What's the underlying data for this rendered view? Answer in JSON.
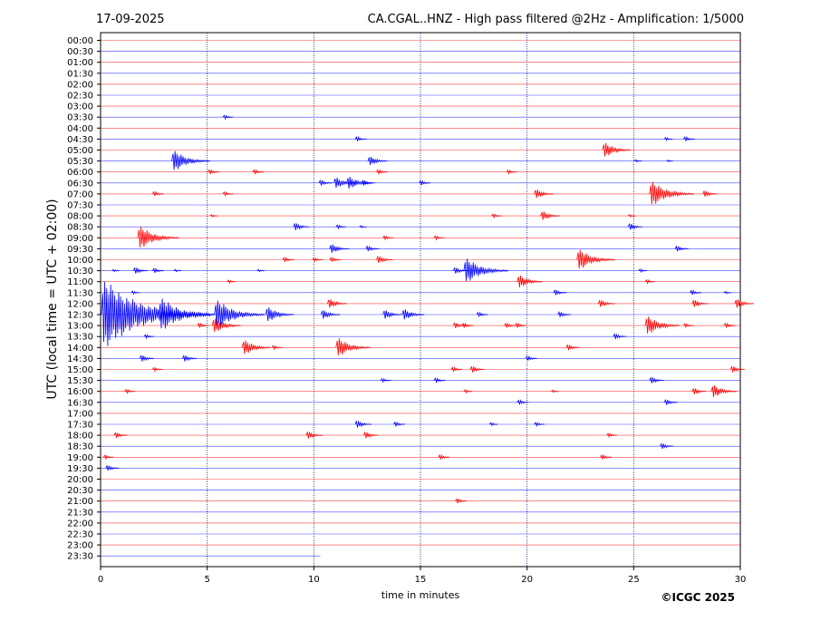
{
  "header": {
    "date": "17-09-2025",
    "title": "CA.CGAL..HNZ - High pass filtered @2Hz - Amplification: 1/5000"
  },
  "copyright": "©ICGC 2025",
  "chart_data": {
    "type": "seismogram",
    "xlabel": "time in minutes",
    "ylabel": "UTC (local time = UTC + 02:00)",
    "xlim": [
      0,
      30
    ],
    "x_ticks": [
      0,
      5,
      10,
      15,
      20,
      25,
      30
    ],
    "x_gridlines": [
      5,
      10,
      15,
      20,
      25
    ],
    "row_labels": [
      "00:00",
      "00:30",
      "01:00",
      "01:30",
      "02:00",
      "02:30",
      "03:00",
      "03:30",
      "04:00",
      "04:30",
      "05:00",
      "05:30",
      "06:00",
      "06:30",
      "07:00",
      "07:30",
      "08:00",
      "08:30",
      "09:00",
      "09:30",
      "10:00",
      "10:30",
      "11:00",
      "11:30",
      "12:00",
      "12:30",
      "13:00",
      "13:30",
      "14:00",
      "14:30",
      "15:00",
      "15:30",
      "16:00",
      "16:30",
      "17:00",
      "17:30",
      "18:00",
      "18:30",
      "19:00",
      "19:30",
      "20:00",
      "20:30",
      "21:00",
      "21:30",
      "22:00",
      "22:30",
      "23:00",
      "23:30"
    ],
    "trace_colors": [
      "#ff0000",
      "#0000ff"
    ],
    "last_trace_end_minute": 10.3,
    "events": [
      {
        "row": "03:30",
        "t": 5.8,
        "amp": 0.3
      },
      {
        "row": "04:30",
        "t": 12.0,
        "amp": 0.35
      },
      {
        "row": "04:30",
        "t": 26.5,
        "amp": 0.25
      },
      {
        "row": "04:30",
        "t": 27.4,
        "amp": 0.35
      },
      {
        "row": "05:00",
        "t": 23.6,
        "amp": 0.9
      },
      {
        "row": "05:30",
        "t": 3.4,
        "amp": 1.2
      },
      {
        "row": "05:30",
        "t": 12.6,
        "amp": 0.6
      },
      {
        "row": "05:30",
        "t": 25.1,
        "amp": 0.2
      },
      {
        "row": "05:30",
        "t": 26.6,
        "amp": 0.15
      },
      {
        "row": "06:00",
        "t": 5.1,
        "amp": 0.35
      },
      {
        "row": "06:00",
        "t": 7.2,
        "amp": 0.35
      },
      {
        "row": "06:00",
        "t": 13.0,
        "amp": 0.35
      },
      {
        "row": "06:00",
        "t": 19.1,
        "amp": 0.3
      },
      {
        "row": "06:30",
        "t": 10.3,
        "amp": 0.4
      },
      {
        "row": "06:30",
        "t": 11.0,
        "amp": 0.7
      },
      {
        "row": "06:30",
        "t": 11.6,
        "amp": 0.8
      },
      {
        "row": "06:30",
        "t": 12.3,
        "amp": 0.4
      },
      {
        "row": "06:30",
        "t": 15.0,
        "amp": 0.35
      },
      {
        "row": "07:00",
        "t": 2.5,
        "amp": 0.35
      },
      {
        "row": "07:00",
        "t": 5.8,
        "amp": 0.3
      },
      {
        "row": "07:00",
        "t": 20.4,
        "amp": 0.6
      },
      {
        "row": "07:00",
        "t": 25.8,
        "amp": 1.4
      },
      {
        "row": "07:00",
        "t": 28.3,
        "amp": 0.45
      },
      {
        "row": "08:00",
        "t": 5.2,
        "amp": 0.2
      },
      {
        "row": "08:00",
        "t": 18.4,
        "amp": 0.3
      },
      {
        "row": "08:00",
        "t": 20.7,
        "amp": 0.6
      },
      {
        "row": "08:00",
        "t": 24.8,
        "amp": 0.2
      },
      {
        "row": "08:30",
        "t": 9.1,
        "amp": 0.5
      },
      {
        "row": "08:30",
        "t": 11.1,
        "amp": 0.3
      },
      {
        "row": "08:30",
        "t": 12.2,
        "amp": 0.2
      },
      {
        "row": "08:30",
        "t": 24.8,
        "amp": 0.45
      },
      {
        "row": "09:00",
        "t": 1.8,
        "amp": 1.3
      },
      {
        "row": "09:00",
        "t": 13.3,
        "amp": 0.3
      },
      {
        "row": "09:00",
        "t": 15.7,
        "amp": 0.3
      },
      {
        "row": "09:30",
        "t": 10.8,
        "amp": 0.6
      },
      {
        "row": "09:30",
        "t": 12.5,
        "amp": 0.4
      },
      {
        "row": "09:30",
        "t": 27.0,
        "amp": 0.4
      },
      {
        "row": "10:00",
        "t": 8.6,
        "amp": 0.35
      },
      {
        "row": "10:00",
        "t": 10.0,
        "amp": 0.3
      },
      {
        "row": "10:00",
        "t": 10.8,
        "amp": 0.35
      },
      {
        "row": "10:00",
        "t": 13.0,
        "amp": 0.5
      },
      {
        "row": "10:00",
        "t": 22.4,
        "amp": 1.2
      },
      {
        "row": "10:30",
        "t": 0.6,
        "amp": 0.2
      },
      {
        "row": "10:30",
        "t": 1.6,
        "amp": 0.45
      },
      {
        "row": "10:30",
        "t": 2.5,
        "amp": 0.35
      },
      {
        "row": "10:30",
        "t": 3.5,
        "amp": 0.2
      },
      {
        "row": "10:30",
        "t": 7.4,
        "amp": 0.2
      },
      {
        "row": "10:30",
        "t": 16.6,
        "amp": 0.45
      },
      {
        "row": "10:30",
        "t": 17.1,
        "amp": 1.4
      },
      {
        "row": "10:30",
        "t": 25.3,
        "amp": 0.25
      },
      {
        "row": "11:00",
        "t": 6.0,
        "amp": 0.25
      },
      {
        "row": "11:00",
        "t": 19.6,
        "amp": 0.8
      },
      {
        "row": "11:00",
        "t": 25.6,
        "amp": 0.3
      },
      {
        "row": "11:30",
        "t": 1.5,
        "amp": 0.25
      },
      {
        "row": "11:30",
        "t": 21.3,
        "amp": 0.4
      },
      {
        "row": "11:30",
        "t": 27.7,
        "amp": 0.35
      },
      {
        "row": "11:30",
        "t": 29.3,
        "amp": 0.2
      },
      {
        "row": "12:00",
        "t": 10.7,
        "amp": 0.6
      },
      {
        "row": "12:00",
        "t": 23.4,
        "amp": 0.5
      },
      {
        "row": "12:00",
        "t": 27.8,
        "amp": 0.5
      },
      {
        "row": "12:00",
        "t": 29.8,
        "amp": 0.6
      },
      {
        "row": "12:30",
        "t": 0.1,
        "amp": 3.5
      },
      {
        "row": "12:30",
        "t": 2.8,
        "amp": 1.8
      },
      {
        "row": "12:30",
        "t": 5.4,
        "amp": 1.6
      },
      {
        "row": "12:30",
        "t": 7.8,
        "amp": 0.9
      },
      {
        "row": "12:30",
        "t": 10.4,
        "amp": 0.6
      },
      {
        "row": "12:30",
        "t": 13.3,
        "amp": 0.6
      },
      {
        "row": "12:30",
        "t": 14.2,
        "amp": 0.7
      },
      {
        "row": "12:30",
        "t": 17.7,
        "amp": 0.35
      },
      {
        "row": "12:30",
        "t": 21.5,
        "amp": 0.4
      },
      {
        "row": "13:00",
        "t": 4.6,
        "amp": 0.35
      },
      {
        "row": "13:00",
        "t": 5.3,
        "amp": 0.9
      },
      {
        "row": "13:00",
        "t": 16.6,
        "amp": 0.4
      },
      {
        "row": "13:00",
        "t": 17.0,
        "amp": 0.35
      },
      {
        "row": "13:00",
        "t": 19.0,
        "amp": 0.35
      },
      {
        "row": "13:00",
        "t": 19.5,
        "amp": 0.35
      },
      {
        "row": "13:00",
        "t": 25.6,
        "amp": 1.1
      },
      {
        "row": "13:00",
        "t": 27.4,
        "amp": 0.3
      },
      {
        "row": "13:00",
        "t": 29.3,
        "amp": 0.35
      },
      {
        "row": "13:30",
        "t": 2.1,
        "amp": 0.3
      },
      {
        "row": "13:30",
        "t": 24.1,
        "amp": 0.4
      },
      {
        "row": "14:00",
        "t": 6.7,
        "amp": 0.9
      },
      {
        "row": "14:00",
        "t": 8.1,
        "amp": 0.3
      },
      {
        "row": "14:00",
        "t": 11.1,
        "amp": 1.1
      },
      {
        "row": "14:00",
        "t": 21.9,
        "amp": 0.4
      },
      {
        "row": "14:30",
        "t": 1.9,
        "amp": 0.45
      },
      {
        "row": "14:30",
        "t": 3.9,
        "amp": 0.45
      },
      {
        "row": "14:30",
        "t": 20.0,
        "amp": 0.35
      },
      {
        "row": "15:00",
        "t": 2.5,
        "amp": 0.3
      },
      {
        "row": "15:00",
        "t": 16.5,
        "amp": 0.35
      },
      {
        "row": "15:00",
        "t": 17.4,
        "amp": 0.45
      },
      {
        "row": "15:00",
        "t": 29.6,
        "amp": 0.45
      },
      {
        "row": "15:30",
        "t": 13.2,
        "amp": 0.3
      },
      {
        "row": "15:30",
        "t": 15.7,
        "amp": 0.35
      },
      {
        "row": "15:30",
        "t": 25.8,
        "amp": 0.45
      },
      {
        "row": "16:00",
        "t": 1.2,
        "amp": 0.3
      },
      {
        "row": "16:00",
        "t": 17.1,
        "amp": 0.25
      },
      {
        "row": "16:00",
        "t": 21.2,
        "amp": 0.2
      },
      {
        "row": "16:00",
        "t": 27.8,
        "amp": 0.45
      },
      {
        "row": "16:00",
        "t": 28.7,
        "amp": 0.8
      },
      {
        "row": "16:30",
        "t": 19.6,
        "amp": 0.35
      },
      {
        "row": "16:30",
        "t": 26.5,
        "amp": 0.4
      },
      {
        "row": "17:30",
        "t": 12.0,
        "amp": 0.5
      },
      {
        "row": "17:30",
        "t": 13.8,
        "amp": 0.35
      },
      {
        "row": "17:30",
        "t": 18.3,
        "amp": 0.25
      },
      {
        "row": "17:30",
        "t": 20.4,
        "amp": 0.3
      },
      {
        "row": "18:00",
        "t": 0.7,
        "amp": 0.4
      },
      {
        "row": "18:00",
        "t": 9.7,
        "amp": 0.5
      },
      {
        "row": "18:00",
        "t": 12.4,
        "amp": 0.45
      },
      {
        "row": "18:00",
        "t": 23.8,
        "amp": 0.3
      },
      {
        "row": "18:30",
        "t": 26.3,
        "amp": 0.4
      },
      {
        "row": "19:00",
        "t": 0.2,
        "amp": 0.3
      },
      {
        "row": "19:00",
        "t": 15.9,
        "amp": 0.35
      },
      {
        "row": "19:00",
        "t": 23.5,
        "amp": 0.35
      },
      {
        "row": "19:30",
        "t": 0.3,
        "amp": 0.4
      },
      {
        "row": "21:00",
        "t": 16.7,
        "amp": 0.35
      }
    ]
  }
}
